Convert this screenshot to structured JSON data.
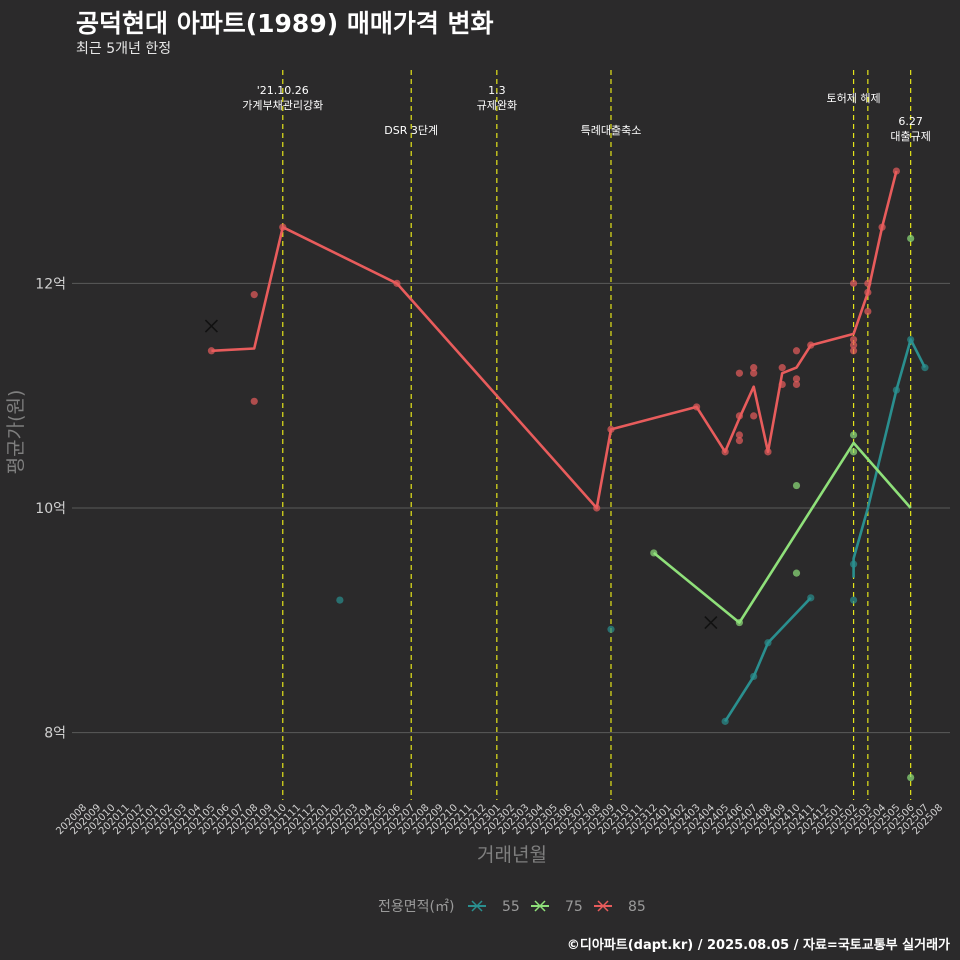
{
  "title": "공덕현대 아파트(1989) 매매가격 변화",
  "subtitle": "최근 5개년 한정",
  "footer": "©디아파트(dapt.kr) / 2025.08.05 / 자료=국토교통부 실거래가",
  "colors": {
    "background": "#2b2a2b",
    "grid": "#5a5a5a",
    "event_line": "#e5e51a"
  },
  "chart_data": {
    "type": "line",
    "xlabel": "거래년월",
    "ylabel": "평균가(원)",
    "x_ticks": [
      "202008",
      "202009",
      "202010",
      "202011",
      "202012",
      "202101",
      "202102",
      "202103",
      "202104",
      "202105",
      "202106",
      "202107",
      "202108",
      "202109",
      "202110",
      "202111",
      "202112",
      "202201",
      "202202",
      "202203",
      "202204",
      "202205",
      "202206",
      "202207",
      "202208",
      "202209",
      "202210",
      "202211",
      "202212",
      "202301",
      "202302",
      "202303",
      "202304",
      "202305",
      "202306",
      "202307",
      "202308",
      "202309",
      "202310",
      "202311",
      "202312",
      "202401",
      "202402",
      "202403",
      "202404",
      "202405",
      "202406",
      "202407",
      "202408",
      "202409",
      "202410",
      "202411",
      "202412",
      "202501",
      "202502",
      "202503",
      "202504",
      "202505",
      "202506",
      "202507",
      "202508"
    ],
    "y_ticks": [
      {
        "value": 8,
        "label": "8억"
      },
      {
        "value": 10,
        "label": "10억"
      },
      {
        "value": 12,
        "label": "12억"
      }
    ],
    "ylim": [
      7.4,
      13.9
    ],
    "unit": "억",
    "grid": true,
    "legend": {
      "title": "전용면적(㎡)",
      "position": "bottom",
      "entries": [
        {
          "label": "55",
          "color": "#2a8f8f"
        },
        {
          "label": "75",
          "color": "#8fe07a"
        },
        {
          "label": "85",
          "color": "#e85c5c"
        }
      ]
    },
    "events": [
      {
        "x": "202110",
        "lines": [
          "'21.10.26",
          "가계부채관리강화"
        ],
        "row": 1
      },
      {
        "x": "202207",
        "lines": [
          "DSR 3단계"
        ],
        "row": 2
      },
      {
        "x": "202301",
        "lines": [
          "1.3",
          "규제완화"
        ],
        "row": 1
      },
      {
        "x": "202309",
        "lines": [
          "특례대출축소"
        ],
        "row": 2
      },
      {
        "x": "202502",
        "lines": [
          "토허제 해제"
        ],
        "row": 0
      },
      {
        "x": "202503",
        "lines": [],
        "row": 0
      },
      {
        "x": "202506",
        "lines": [
          "6.27",
          "대출규제"
        ],
        "row": 3
      }
    ],
    "series": [
      {
        "name": "55",
        "color": "#2a8f8f",
        "line": [
          [
            "202502",
            9.38
          ],
          [
            "202502",
            9.55
          ],
          [
            "202503",
            10.0
          ],
          [
            "202505",
            11.05
          ],
          [
            "202506",
            11.5
          ],
          [
            "202507",
            11.25
          ]
        ],
        "line2": [
          [
            "202405",
            8.1
          ],
          [
            "202407",
            8.5
          ],
          [
            "202408",
            8.8
          ],
          [
            "202411",
            9.2
          ]
        ],
        "points": [
          [
            "202202",
            9.18
          ],
          [
            "202309",
            8.92
          ],
          [
            "202405",
            8.1
          ],
          [
            "202407",
            8.5
          ],
          [
            "202408",
            8.8
          ],
          [
            "202411",
            9.2
          ],
          [
            "202502",
            9.5
          ],
          [
            "202502",
            9.18
          ],
          [
            "202505",
            11.05
          ],
          [
            "202506",
            11.5
          ],
          [
            "202507",
            11.25
          ]
        ],
        "marker": []
      },
      {
        "name": "75",
        "color": "#8fe07a",
        "line": [
          [
            "202312",
            9.6
          ],
          [
            "202406",
            8.98
          ],
          [
            "202502",
            10.58
          ],
          [
            "202506",
            10.0
          ]
        ],
        "points": [
          [
            "202312",
            9.6
          ],
          [
            "202406",
            8.98
          ],
          [
            "202410",
            10.2
          ],
          [
            "202410",
            9.42
          ],
          [
            "202502",
            10.65
          ],
          [
            "202502",
            10.5
          ],
          [
            "202506",
            12.4
          ],
          [
            "202506",
            7.6
          ]
        ],
        "marker": [
          [
            "202404",
            8.98
          ]
        ]
      },
      {
        "name": "85",
        "color": "#e85c5c",
        "line": [
          [
            "202105",
            11.4
          ],
          [
            "202108",
            11.42
          ],
          [
            "202110",
            12.5
          ],
          [
            "202206",
            12.0
          ],
          [
            "202308",
            10.0
          ],
          [
            "202309",
            10.7
          ],
          [
            "202403",
            10.9
          ],
          [
            "202405",
            10.5
          ],
          [
            "202406",
            10.8
          ],
          [
            "202407",
            11.08
          ],
          [
            "202408",
            10.5
          ],
          [
            "202409",
            11.2
          ],
          [
            "202410",
            11.25
          ],
          [
            "202411",
            11.45
          ],
          [
            "202502",
            11.55
          ],
          [
            "202503",
            11.92
          ],
          [
            "202504",
            12.5
          ],
          [
            "202505",
            13.0
          ]
        ],
        "points": [
          [
            "202105",
            11.4
          ],
          [
            "202108",
            11.9
          ],
          [
            "202108",
            10.95
          ],
          [
            "202110",
            12.5
          ],
          [
            "202206",
            12.0
          ],
          [
            "202308",
            10.0
          ],
          [
            "202309",
            10.7
          ],
          [
            "202403",
            10.9
          ],
          [
            "202405",
            10.5
          ],
          [
            "202406",
            11.2
          ],
          [
            "202406",
            10.82
          ],
          [
            "202406",
            10.65
          ],
          [
            "202406",
            10.6
          ],
          [
            "202407",
            11.25
          ],
          [
            "202407",
            11.2
          ],
          [
            "202407",
            10.82
          ],
          [
            "202408",
            10.5
          ],
          [
            "202409",
            11.25
          ],
          [
            "202409",
            11.1
          ],
          [
            "202410",
            11.4
          ],
          [
            "202410",
            11.15
          ],
          [
            "202410",
            11.1
          ],
          [
            "202411",
            11.45
          ],
          [
            "202502",
            12.0
          ],
          [
            "202502",
            11.5
          ],
          [
            "202502",
            11.45
          ],
          [
            "202502",
            11.4
          ],
          [
            "202503",
            11.92
          ],
          [
            "202503",
            11.75
          ],
          [
            "202503",
            12.0
          ],
          [
            "202504",
            12.5
          ],
          [
            "202505",
            13.0
          ]
        ],
        "marker": [
          [
            "202105",
            11.62
          ]
        ]
      }
    ]
  }
}
